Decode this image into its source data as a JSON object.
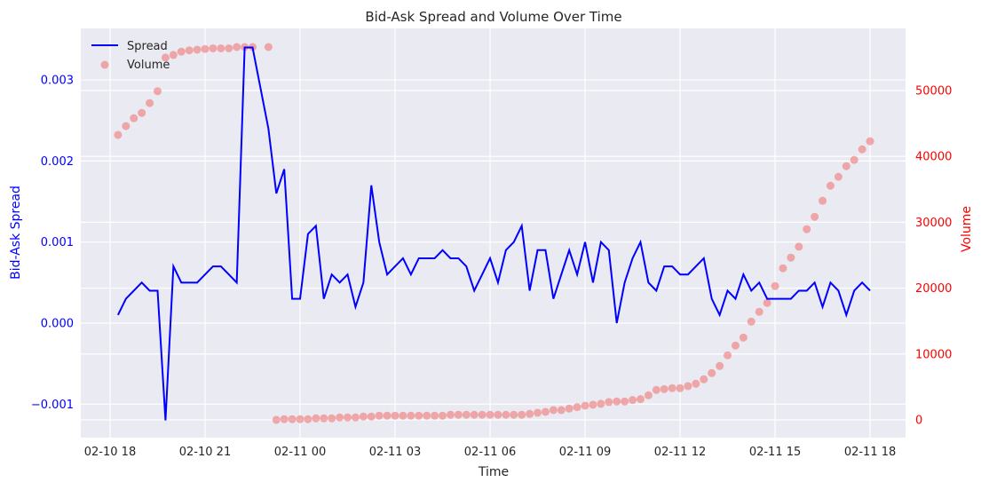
{
  "chart_data": {
    "type": "line",
    "title": "Bid-Ask Spread and Volume Over Time",
    "xlabel": "Time",
    "ylabel": "Bid-Ask Spread",
    "y2label": "Volume",
    "xlim_hours_from_first_tick": [
      -0.925,
      25.12
    ],
    "ylim": [
      -0.001413,
      0.003636
    ],
    "y2lim": [
      -2700,
      59430
    ],
    "grid": true,
    "legend_position": "top-left",
    "x_ticks": [
      "02-10 18",
      "02-10 21",
      "02-11 00",
      "02-11 03",
      "02-11 06",
      "02-11 09",
      "02-11 12",
      "02-11 15",
      "02-11 18"
    ],
    "y_ticks": [
      {
        "value": -0.001,
        "label": "−0.001"
      },
      {
        "value": 0,
        "label": "0.000"
      },
      {
        "value": 0.001,
        "label": "0.001"
      },
      {
        "value": 0.002,
        "label": "0.002"
      },
      {
        "value": 0.003,
        "label": "0.003"
      }
    ],
    "y2_ticks": [
      {
        "value": 0,
        "label": "0"
      },
      {
        "value": 10000,
        "label": "10000"
      },
      {
        "value": 20000,
        "label": "20000"
      },
      {
        "value": 30000,
        "label": "30000"
      },
      {
        "value": 40000,
        "label": "40000"
      },
      {
        "value": 50000,
        "label": "50000"
      }
    ],
    "x": [
      "02-10 18:15",
      "02-10 18:30",
      "02-10 18:45",
      "02-10 19:00",
      "02-10 19:15",
      "02-10 19:30",
      "02-10 19:45",
      "02-10 20:00",
      "02-10 20:15",
      "02-10 20:30",
      "02-10 20:45",
      "02-10 21:00",
      "02-10 21:15",
      "02-10 21:30",
      "02-10 21:45",
      "02-10 22:00",
      "02-10 22:15",
      "02-10 22:30",
      "02-10 22:45",
      "02-10 23:00",
      "02-10 23:15",
      "02-10 23:30",
      "02-10 23:45",
      "02-11 00:00",
      "02-11 00:15",
      "02-11 00:30",
      "02-11 00:45",
      "02-11 01:00",
      "02-11 01:15",
      "02-11 01:30",
      "02-11 01:45",
      "02-11 02:00",
      "02-11 02:15",
      "02-11 02:30",
      "02-11 02:45",
      "02-11 03:00",
      "02-11 03:15",
      "02-11 03:30",
      "02-11 03:45",
      "02-11 04:00",
      "02-11 04:15",
      "02-11 04:30",
      "02-11 04:45",
      "02-11 05:00",
      "02-11 05:15",
      "02-11 05:30",
      "02-11 05:45",
      "02-11 06:00",
      "02-11 06:15",
      "02-11 06:30",
      "02-11 06:45",
      "02-11 07:00",
      "02-11 07:15",
      "02-11 07:30",
      "02-11 07:45",
      "02-11 08:00",
      "02-11 08:15",
      "02-11 08:30",
      "02-11 08:45",
      "02-11 09:00",
      "02-11 09:15",
      "02-11 09:30",
      "02-11 09:45",
      "02-11 10:00",
      "02-11 10:15",
      "02-11 10:30",
      "02-11 10:45",
      "02-11 11:00",
      "02-11 11:15",
      "02-11 11:30",
      "02-11 11:45",
      "02-11 12:00",
      "02-11 12:15",
      "02-11 12:30",
      "02-11 12:45",
      "02-11 13:00",
      "02-11 13:15",
      "02-11 13:30",
      "02-11 13:45",
      "02-11 14:00",
      "02-11 14:15",
      "02-11 14:30",
      "02-11 14:45",
      "02-11 15:00",
      "02-11 15:15",
      "02-11 15:30",
      "02-11 15:45",
      "02-11 16:00",
      "02-11 16:15",
      "02-11 16:30",
      "02-11 16:45",
      "02-11 17:00",
      "02-11 17:15",
      "02-11 17:30",
      "02-11 17:45",
      "02-11 18:00"
    ],
    "series": [
      {
        "name": "Spread",
        "axis": "left",
        "style": "line",
        "color": "#0000ff",
        "values": [
          0.0001,
          0.0003,
          0.0004,
          0.0005,
          0.0004,
          0.0004,
          -0.0012,
          0.0007,
          0.0005,
          0.0005,
          0.0005,
          0.0006,
          0.0007,
          0.0007,
          0.0006,
          0.0005,
          0.0034,
          0.0034,
          0.0029,
          0.0024,
          0.0016,
          0.0019,
          0.0003,
          0.0003,
          0.0011,
          0.0012,
          0.0003,
          0.0006,
          0.0005,
          0.0006,
          0.0002,
          0.0005,
          0.0017,
          0.001,
          0.0006,
          0.0007,
          0.0008,
          0.0006,
          0.0008,
          0.0008,
          0.0008,
          0.0009,
          0.0008,
          0.0008,
          0.0007,
          0.0004,
          0.0006,
          0.0008,
          0.0005,
          0.0009,
          0.001,
          0.0012,
          0.0004,
          0.0009,
          0.0009,
          0.0003,
          0.0006,
          0.0009,
          0.0006,
          0.001,
          0.0005,
          0.001,
          0.0009,
          0.0,
          0.0005,
          0.0008,
          0.001,
          0.0005,
          0.0004,
          0.0007,
          0.0007,
          0.0006,
          0.0006,
          0.0007,
          0.0008,
          0.0003,
          0.0001,
          0.0004,
          0.0003,
          0.0006,
          0.0004,
          0.0005,
          0.0003,
          0.0003,
          0.0003,
          0.0003,
          0.0004,
          0.0004,
          0.0005,
          0.0002,
          0.0005,
          0.0004,
          0.0001,
          0.0004,
          0.0005,
          0.0004
        ]
      },
      {
        "name": "Volume",
        "axis": "right",
        "style": "scatter",
        "color": "#f08080",
        "values": [
          43260,
          44600,
          45800,
          46600,
          48100,
          49900,
          55000,
          55400,
          55900,
          56100,
          56200,
          56300,
          56400,
          56400,
          56400,
          56600,
          56600,
          56600,
          null,
          56600,
          0,
          100,
          100,
          100,
          100,
          230,
          230,
          230,
          360,
          360,
          360,
          500,
          500,
          630,
          630,
          630,
          630,
          630,
          630,
          630,
          630,
          630,
          770,
          770,
          770,
          770,
          770,
          770,
          770,
          770,
          770,
          770,
          900,
          1080,
          1210,
          1480,
          1480,
          1710,
          1930,
          2160,
          2290,
          2430,
          2700,
          2790,
          2790,
          3010,
          3140,
          3730,
          4540,
          4670,
          4810,
          4810,
          5120,
          5480,
          6160,
          7100,
          8180,
          9800,
          11280,
          12490,
          14920,
          16400,
          17750,
          20310,
          23010,
          24630,
          26290,
          28940,
          30830,
          33260,
          35550,
          36900,
          38510,
          39460,
          41070,
          42290
        ]
      }
    ],
    "colors": {
      "background": "#eaeaf2",
      "grid": "#ffffff",
      "left_axis": "#0000ff",
      "right_axis": "#ff0000",
      "text": "#262626"
    }
  }
}
